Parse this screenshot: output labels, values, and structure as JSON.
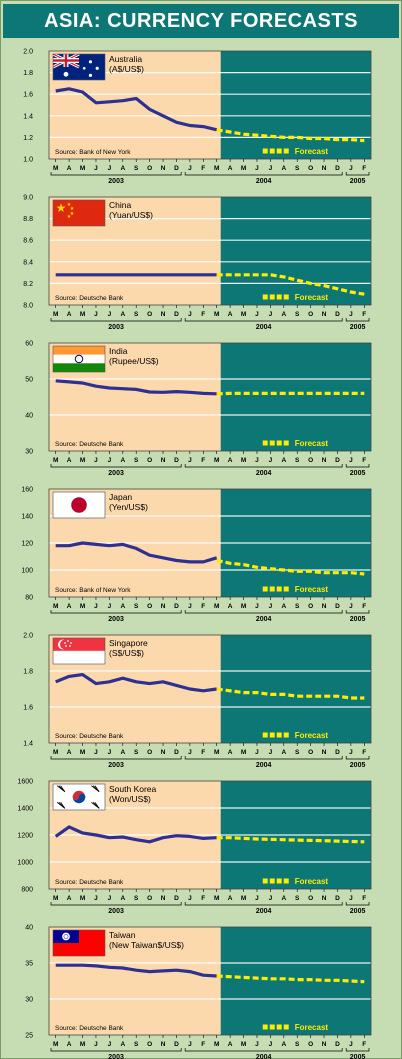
{
  "title": "ASIA: CURRENCY FORECASTS",
  "forecast_label": "Forecast",
  "colors": {
    "background": "#c6ddb4",
    "title_bar": "#0d7776",
    "history_bg": "#fbd9ad",
    "forecast_bg": "#0d7776",
    "line": "#2e3192",
    "forecast_line": "#ffec00"
  },
  "months": [
    "M",
    "A",
    "M",
    "J",
    "J",
    "A",
    "S",
    "O",
    "N",
    "D",
    "J",
    "F",
    "M",
    "A",
    "M",
    "J",
    "J",
    "A",
    "S",
    "O",
    "N",
    "D",
    "J",
    "F"
  ],
  "years": [
    {
      "label": "2003"
    },
    {
      "label": "2004"
    },
    {
      "label": "2005"
    }
  ],
  "chart_data": [
    {
      "type": "line",
      "country": "Australia",
      "unit": "(A$/US$)",
      "flag": "australia-flag",
      "source": "Source: Bank of New York",
      "ylim": [
        1.0,
        2.0
      ],
      "yticks": [
        "2.0",
        "1.8",
        "1.6",
        "1.4",
        "1.2",
        "1.0"
      ],
      "history": [
        1.63,
        1.65,
        1.62,
        1.52,
        1.53,
        1.54,
        1.56,
        1.46,
        1.4,
        1.34,
        1.31,
        1.3,
        1.27
      ],
      "forecast": [
        1.27,
        1.25,
        1.23,
        1.22,
        1.21,
        1.2,
        1.2,
        1.19,
        1.19,
        1.18,
        1.18,
        1.17
      ]
    },
    {
      "type": "line",
      "country": "China",
      "unit": "(Yuan/US$)",
      "flag": "china-flag",
      "source": "Source: Deutsche Bank",
      "ylim": [
        8.0,
        9.0
      ],
      "yticks": [
        "9.0",
        "8.8",
        "8.6",
        "8.4",
        "8.2",
        "8.0"
      ],
      "history": [
        8.28,
        8.28,
        8.28,
        8.28,
        8.28,
        8.28,
        8.28,
        8.28,
        8.28,
        8.28,
        8.28,
        8.28,
        8.28
      ],
      "forecast": [
        8.28,
        8.28,
        8.28,
        8.28,
        8.28,
        8.26,
        8.23,
        8.2,
        8.18,
        8.15,
        8.12,
        8.1
      ]
    },
    {
      "type": "line",
      "country": "India",
      "unit": "(Rupee/US$)",
      "flag": "india-flag",
      "source": "Source: Deutsche Bank",
      "ylim": [
        30,
        60
      ],
      "yticks": [
        "60",
        "50",
        "40",
        "30"
      ],
      "history": [
        49.5,
        49.2,
        48.9,
        48.0,
        47.5,
        47.3,
        47.1,
        46.4,
        46.3,
        46.5,
        46.3,
        46.0,
        45.9
      ],
      "forecast": [
        45.9,
        46.0,
        46.0,
        46.0,
        46.0,
        46.0,
        46.0,
        46.0,
        46.0,
        46.0,
        46.0,
        46.0
      ]
    },
    {
      "type": "line",
      "country": "Japan",
      "unit": "(Yen/US$)",
      "flag": "japan-flag",
      "source": "Source: Bank of New York",
      "ylim": [
        80,
        160
      ],
      "yticks": [
        "160",
        "140",
        "120",
        "100",
        "80"
      ],
      "history": [
        118,
        118,
        120,
        119,
        118,
        119,
        116,
        111,
        109,
        107,
        106,
        106,
        109
      ],
      "forecast": [
        107,
        105,
        104,
        102,
        101,
        100,
        99,
        99,
        98,
        98,
        98,
        97
      ]
    },
    {
      "type": "line",
      "country": "Singapore",
      "unit": "(S$/US$)",
      "flag": "singapore-flag",
      "source": "Source: Deutsche Bank",
      "ylim": [
        1.4,
        2.0
      ],
      "yticks": [
        "2.0",
        "1.8",
        "1.6",
        "1.4"
      ],
      "history": [
        1.74,
        1.77,
        1.78,
        1.73,
        1.74,
        1.76,
        1.74,
        1.73,
        1.74,
        1.72,
        1.7,
        1.69,
        1.7
      ],
      "forecast": [
        1.7,
        1.69,
        1.68,
        1.68,
        1.67,
        1.67,
        1.66,
        1.66,
        1.66,
        1.66,
        1.65,
        1.65
      ]
    },
    {
      "type": "line",
      "country": "South Korea",
      "unit": "(Won/US$)",
      "flag": "korea-flag",
      "source": "Source: Deutsche Bank",
      "ylim": [
        800,
        1600
      ],
      "yticks": [
        "1600",
        "1400",
        "1200",
        "1000",
        "800"
      ],
      "history": [
        1190,
        1260,
        1215,
        1200,
        1180,
        1185,
        1165,
        1150,
        1180,
        1195,
        1190,
        1175,
        1180
      ],
      "forecast": [
        1180,
        1180,
        1175,
        1170,
        1168,
        1165,
        1162,
        1160,
        1158,
        1155,
        1152,
        1150
      ]
    },
    {
      "type": "line",
      "country": "Taiwan",
      "unit": "(New Taiwan$/US$)",
      "flag": "taiwan-flag",
      "source": "Source: Deutsche Bank",
      "ylim": [
        25,
        40
      ],
      "yticks": [
        "40",
        "35",
        "30",
        "25"
      ],
      "history": [
        34.7,
        34.7,
        34.7,
        34.6,
        34.4,
        34.3,
        34.0,
        33.8,
        33.9,
        34.0,
        33.8,
        33.3,
        33.2
      ],
      "forecast": [
        33.2,
        33.1,
        33.0,
        32.9,
        32.8,
        32.8,
        32.7,
        32.7,
        32.6,
        32.6,
        32.5,
        32.4
      ]
    }
  ]
}
